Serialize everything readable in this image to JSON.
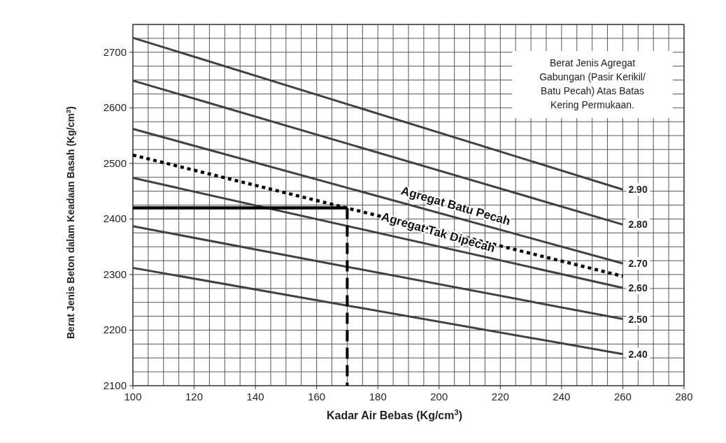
{
  "chart_data": {
    "type": "line",
    "xlabel": "Kadar Air Bebas (Kg/cm$^{3}$)",
    "ylabel": "Berat Jenis Beton dalam Keadaan Basah (Kg/cm$^{3}$)",
    "xlim": [
      100,
      280
    ],
    "ylim": [
      2100,
      2750
    ],
    "xticks": [
      100,
      {
        "value": 105,
        "label": null
      },
      {
        "value": 110,
        "label": null
      },
      {
        "value": 115,
        "label": null
      },
      120,
      {
        "value": 125,
        "label": null
      },
      {
        "value": 130,
        "label": null
      },
      {
        "value": 135,
        "label": null
      },
      140,
      {
        "value": 145,
        "label": null
      },
      {
        "value": 150,
        "label": null
      },
      {
        "value": 155,
        "label": null
      },
      160,
      {
        "value": 165,
        "label": null
      },
      {
        "value": 170,
        "label": null
      },
      {
        "value": 175,
        "label": null
      },
      180,
      {
        "value": 185,
        "label": null
      },
      {
        "value": 190,
        "label": null
      },
      {
        "value": 195,
        "label": null
      },
      200,
      {
        "value": 205,
        "label": null
      },
      {
        "value": 210,
        "label": null
      },
      {
        "value": 215,
        "label": null
      },
      220,
      {
        "value": 225,
        "label": null
      },
      {
        "value": 230,
        "label": null
      },
      {
        "value": 235,
        "label": null
      },
      240,
      {
        "value": 245,
        "label": null
      },
      {
        "value": 250,
        "label": null
      },
      {
        "value": 255,
        "label": null
      },
      260,
      {
        "value": 265,
        "label": null
      },
      {
        "value": 270,
        "label": null
      },
      {
        "value": 275,
        "label": null
      },
      280
    ],
    "yticks": [
      2100,
      {
        "value": 2125,
        "label": null
      },
      {
        "value": 2150,
        "label": null
      },
      {
        "value": 2175,
        "label": null
      },
      2200,
      {
        "value": 2225,
        "label": null
      },
      {
        "value": 2250,
        "label": null
      },
      {
        "value": 2275,
        "label": null
      },
      2300,
      {
        "value": 2325,
        "label": null
      },
      {
        "value": 2350,
        "label": null
      },
      {
        "value": 2375,
        "label": null
      },
      2400,
      {
        "value": 2425,
        "label": null
      },
      {
        "value": 2450,
        "label": null
      },
      {
        "value": 2475,
        "label": null
      },
      2500,
      {
        "value": 2525,
        "label": null
      },
      {
        "value": 2550,
        "label": null
      },
      {
        "value": 2575,
        "label": null
      },
      2600,
      {
        "value": 2625,
        "label": null
      },
      {
        "value": 2650,
        "label": null
      },
      {
        "value": 2675,
        "label": null
      },
      2700,
      {
        "value": 2725,
        "label": null
      },
      {
        "value": 2750,
        "label": null
      }
    ],
    "grid": true,
    "series": [
      {
        "name": "2.90",
        "color": "#463f42",
        "x": [
          100,
          260
        ],
        "values": [
          2726,
          2453
        ]
      },
      {
        "name": "2.80",
        "color": "#463f42",
        "x": [
          100,
          260
        ],
        "values": [
          2649,
          2390
        ]
      },
      {
        "name": "2.70",
        "color": "#463f42",
        "x": [
          100,
          260
        ],
        "values": [
          2562,
          2320
        ]
      },
      {
        "name": "2.60",
        "color": "#463f42",
        "x": [
          100,
          260
        ],
        "values": [
          2474,
          2276
        ]
      },
      {
        "name": "2.50",
        "color": "#463f42",
        "x": [
          100,
          260
        ],
        "values": [
          2387,
          2220
        ]
      },
      {
        "name": "2.40",
        "color": "#463f42",
        "x": [
          100,
          260
        ],
        "values": [
          2312,
          2157
        ]
      },
      {
        "color": "#000000",
        "x": [
          100,
          260
        ],
        "values": [
          2515,
          2297
        ],
        "line_style": "dotted"
      },
      {
        "color": "#000000",
        "x": [
          100,
          170
        ],
        "values": [
          2420,
          2420
        ],
        "line_style": "solid"
      },
      {
        "color": "#000000",
        "x": [
          170,
          170
        ],
        "values": [
          2420,
          2100
        ],
        "line_style": "dashed"
      }
    ],
    "annotations": [
      "Agregat Batu Pecah",
      "Agregat Tak Dipecah",
      "Berat Jenis Agregat Gabungan (Pasir Kerikil/ Batu Pecah) Atas Batas Kering Permukaan."
    ]
  }
}
